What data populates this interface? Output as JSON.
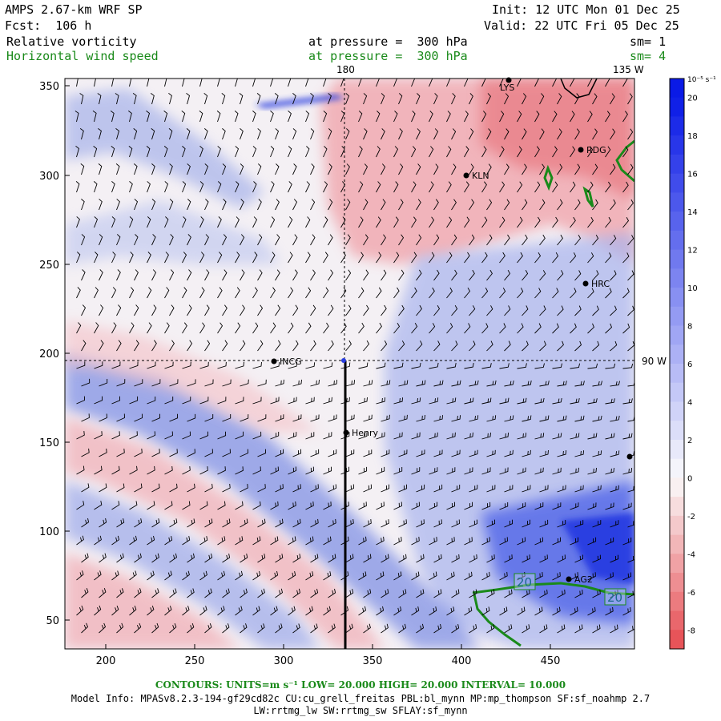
{
  "header": {
    "model": "AMPS 2.67-km WRF SP",
    "init": "Init: 12 UTC Mon 01 Dec 25",
    "fcst": "Fcst:  106 h",
    "valid": "Valid: 22 UTC Fri 05 Dec 25",
    "field1": "Relative vorticity",
    "field1_level": "at pressure =  300 hPa",
    "field1_sm": "sm= 1",
    "field2": "Horizontal wind speed",
    "field2_level": "at pressure =  300 hPa",
    "field2_sm": "sm= 4"
  },
  "map": {
    "lon_labels": {
      "top_180": "180",
      "top_135": "135 W",
      "right_90": "90 W"
    },
    "x_ticks": [
      "200",
      "250",
      "300",
      "350",
      "400",
      "450"
    ],
    "y_ticks": [
      "350",
      "300",
      "250",
      "200",
      "150",
      "100",
      "50"
    ],
    "stations": [
      {
        "name": "LYS"
      },
      {
        "name": "RDG"
      },
      {
        "name": "KLN"
      },
      {
        "name": "HRC"
      },
      {
        "name": "INCG"
      },
      {
        "name": "Henry"
      },
      {
        "name": "AG2"
      }
    ],
    "contour_labels": [
      "20",
      "20"
    ]
  },
  "colorbar": {
    "units": "10⁻⁵ s⁻¹",
    "labels": [
      "20",
      "18",
      "16",
      "14",
      "12",
      "10",
      "8",
      "6",
      "4",
      "2",
      "0",
      "-2",
      "-4",
      "-6",
      "-8"
    ],
    "pos_color": "#0a1ae6",
    "neg_color": "#e64a4a"
  },
  "footer": {
    "contours": "CONTOURS:  UNITS=m s⁻¹  LOW=  20.000      HIGH=  20.000      INTERVAL=   10.000",
    "model_info": "Model Info: MPASv8.2.3-194-gf29cd82c CU:cu_grell_freitas PBL:bl_mynn MP:mp_thompson SF:sf_noahmp 2.7",
    "model_info2": "LW:rrtmg_lw SW:rrtmg_sw SFLAY:sf_mynn"
  }
}
